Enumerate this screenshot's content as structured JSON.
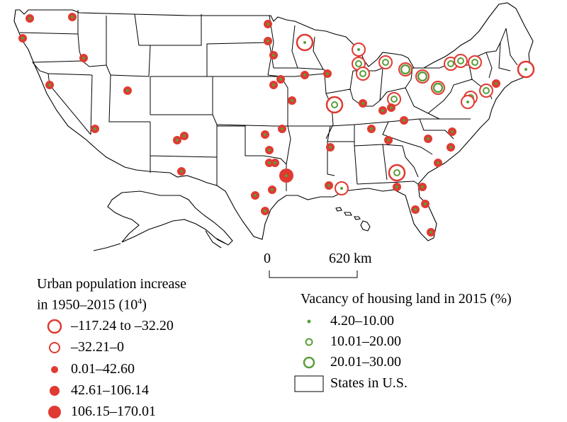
{
  "colors": {
    "population": "#e03a32",
    "vacancy": "#5a9e3a",
    "state_line": "#000000"
  },
  "scale_bar": {
    "start_label": "0",
    "end_label": "620 km"
  },
  "legend_population": {
    "title_line1": "Urban population increase",
    "title_line2": "in 1950–2015 (10",
    "title_sup": "4",
    "title_end": ")",
    "items": [
      {
        "label": "–117.24 to –32.20"
      },
      {
        "label": "–32.21–0"
      },
      {
        "label": "0.01–42.60"
      },
      {
        "label": "42.61–106.14"
      },
      {
        "label": "106.15–170.01"
      }
    ]
  },
  "legend_vacancy": {
    "title": "Vacancy of housing land in 2015 (%)",
    "items": [
      {
        "label": "4.20–10.00"
      },
      {
        "label": "10.01–20.00"
      },
      {
        "label": "20.01–30.00"
      }
    ],
    "states_label": "States in U.S."
  },
  "cities": [
    {
      "id": "seattle",
      "pop_class": 3,
      "vac_class": 1
    },
    {
      "id": "spokane",
      "pop_class": 3,
      "vac_class": 1
    },
    {
      "id": "portland",
      "pop_class": 3,
      "vac_class": 1
    },
    {
      "id": "boise",
      "pop_class": 3,
      "vac_class": 1
    },
    {
      "id": "sacramento",
      "pop_class": 3,
      "vac_class": 1
    },
    {
      "id": "los-angeles",
      "pop_class": 3,
      "vac_class": 1
    },
    {
      "id": "salt-lake",
      "pop_class": 3,
      "vac_class": 1
    },
    {
      "id": "albuquerque-1",
      "pop_class": 3,
      "vac_class": 1
    },
    {
      "id": "albuquerque-2",
      "pop_class": 3,
      "vac_class": 1
    },
    {
      "id": "el-paso",
      "pop_class": 3,
      "vac_class": 1
    },
    {
      "id": "fargo",
      "pop_class": 3,
      "vac_class": 1
    },
    {
      "id": "bismarck",
      "pop_class": 3,
      "vac_class": 1
    },
    {
      "id": "sioux-falls",
      "pop_class": 3,
      "vac_class": 1
    },
    {
      "id": "minneapolis",
      "pop_class": 1,
      "vac_class": 1
    },
    {
      "id": "omaha",
      "pop_class": 3,
      "vac_class": 1
    },
    {
      "id": "lincoln",
      "pop_class": 3,
      "vac_class": 1
    },
    {
      "id": "des-moines",
      "pop_class": 3,
      "vac_class": 1
    },
    {
      "id": "cedar",
      "pop_class": 3,
      "vac_class": 1
    },
    {
      "id": "milwaukee",
      "pop_class": 2,
      "vac_class": 1
    },
    {
      "id": "chicago",
      "pop_class": 2,
      "vac_class": 2
    },
    {
      "id": "gary",
      "pop_class": 2,
      "vac_class": 2
    },
    {
      "id": "detroit",
      "pop_class": 2,
      "vac_class": 3
    },
    {
      "id": "toledo",
      "pop_class": 2,
      "vac_class": 2
    },
    {
      "id": "cleveland",
      "pop_class": 2,
      "vac_class": 3
    },
    {
      "id": "kansas-city",
      "pop_class": 3,
      "vac_class": 1
    },
    {
      "id": "topeka",
      "pop_class": 3,
      "vac_class": 1
    },
    {
      "id": "st-louis",
      "pop_class": 1,
      "vac_class": 2
    },
    {
      "id": "indianapolis",
      "pop_class": 3,
      "vac_class": 1
    },
    {
      "id": "cincinnati",
      "pop_class": 2,
      "vac_class": 2
    },
    {
      "id": "louisville",
      "pop_class": 3,
      "vac_class": 1
    },
    {
      "id": "pittsburgh",
      "pop_class": 2,
      "vac_class": 3
    },
    {
      "id": "buffalo",
      "pop_class": 2,
      "vac_class": 2
    },
    {
      "id": "rochester",
      "pop_class": 2,
      "vac_class": 2
    },
    {
      "id": "syracuse",
      "pop_class": 2,
      "vac_class": 2
    },
    {
      "id": "boston",
      "pop_class": 1,
      "vac_class": 1
    },
    {
      "id": "new-york",
      "pop_class": 3,
      "vac_class": 1
    },
    {
      "id": "philadelphia",
      "pop_class": 2,
      "vac_class": 2
    },
    {
      "id": "baltimore",
      "pop_class": 2,
      "vac_class": 2
    },
    {
      "id": "washington",
      "pop_class": 2,
      "vac_class": 1
    },
    {
      "id": "oklahoma",
      "pop_class": 3,
      "vac_class": 1
    },
    {
      "id": "tulsa",
      "pop_class": 3,
      "vac_class": 1
    },
    {
      "id": "dallas",
      "pop_class": 3,
      "vac_class": 1
    },
    {
      "id": "fort-worth",
      "pop_class": 3,
      "vac_class": 1
    },
    {
      "id": "shreveport",
      "pop_class": 5,
      "vac_class": 1
    },
    {
      "id": "austin",
      "pop_class": 3,
      "vac_class": 1
    },
    {
      "id": "san-antonio",
      "pop_class": 3,
      "vac_class": 1
    },
    {
      "id": "houston",
      "pop_class": 3,
      "vac_class": 1
    },
    {
      "id": "memphis",
      "pop_class": 3,
      "vac_class": 1
    },
    {
      "id": "nashville",
      "pop_class": 3,
      "vac_class": 1
    },
    {
      "id": "knoxville",
      "pop_class": 3,
      "vac_class": 1
    },
    {
      "id": "charlotte",
      "pop_class": 3,
      "vac_class": 1
    },
    {
      "id": "raleigh",
      "pop_class": 3,
      "vac_class": 1
    },
    {
      "id": "greensboro",
      "pop_class": 3,
      "vac_class": 1
    },
    {
      "id": "columbia",
      "pop_class": 3,
      "vac_class": 1
    },
    {
      "id": "charleston",
      "pop_class": 3,
      "vac_class": 1
    },
    {
      "id": "atlanta",
      "pop_class": 3,
      "vac_class": 1
    },
    {
      "id": "birmingham",
      "pop_class": 1,
      "vac_class": 2
    },
    {
      "id": "jackson",
      "pop_class": 3,
      "vac_class": 1
    },
    {
      "id": "new-orleans",
      "pop_class": 2,
      "vac_class": 1
    },
    {
      "id": "mobile",
      "pop_class": 3,
      "vac_class": 1
    },
    {
      "id": "jacksonville",
      "pop_class": 3,
      "vac_class": 1
    },
    {
      "id": "savannah",
      "pop_class": 3,
      "vac_class": 1
    },
    {
      "id": "tampa",
      "pop_class": 3,
      "vac_class": 1
    },
    {
      "id": "orlando",
      "pop_class": 3,
      "vac_class": 1
    },
    {
      "id": "miami",
      "pop_class": 3,
      "vac_class": 1
    }
  ]
}
